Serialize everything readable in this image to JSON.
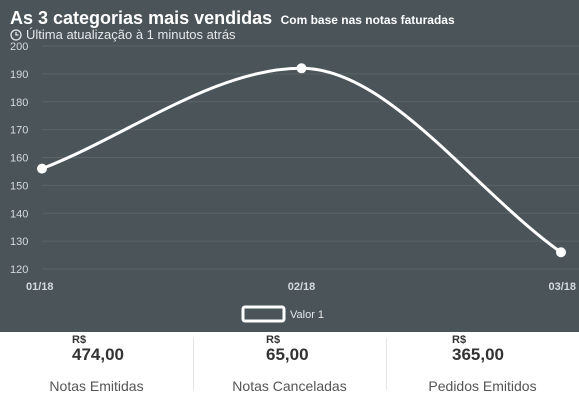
{
  "header": {
    "title": "As 3 categorias mais vendidas",
    "subtitle": "Com base nas notas faturadas",
    "updated": "Última atualização à 1 minutos atrás",
    "icon": "clock-icon"
  },
  "colors": {
    "panel": "#4a5459",
    "line": "#ffffff",
    "grid": "#5b6469",
    "axis_text": "#d4dadc"
  },
  "chart_data": {
    "type": "line",
    "title": "As 3 categorias mais vendidas",
    "subtitle": "Com base nas notas faturadas",
    "categories": [
      "01/18",
      "02/18",
      "03/18"
    ],
    "series": [
      {
        "name": "Valor 1",
        "values": [
          156,
          192,
          126
        ]
      }
    ],
    "ylim": [
      120,
      200
    ],
    "yticks": [
      120,
      130,
      140,
      150,
      160,
      170,
      180,
      190,
      200
    ],
    "grid": true,
    "legend": "bottom-center"
  },
  "stats": [
    {
      "currency": "R$",
      "value": "474,00",
      "label": "Notas Emitidas"
    },
    {
      "currency": "R$",
      "value": "65,00",
      "label": "Notas Canceladas"
    },
    {
      "currency": "R$",
      "value": "365,00",
      "label": "Pedidos Emitidos"
    }
  ]
}
